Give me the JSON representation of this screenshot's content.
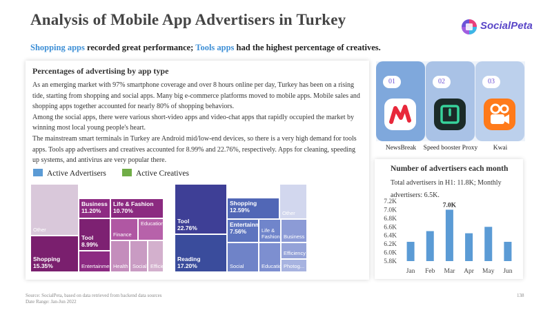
{
  "header": {
    "title": "Analysis of Mobile App Advertisers in Turkey",
    "logo_text": "SocialPeta"
  },
  "subtitle": {
    "part1": "Shopping apps",
    "part2": " recorded great performance; ",
    "part3": "Tools apps",
    "part4": " had the highest percentage of creatives."
  },
  "left_card": {
    "heading": "Percentages of advertising by app type",
    "paragraphs": [
      "As an emerging market with 97% smartphone coverage and over 8 hours online per day, Turkey has been on a rising tide, starting from shopping and social apps. Many big e-commerce platforms moved to mobile apps. Mobile sales and shopping apps together accounted for nearly 80% of shopping behaviors.",
      "Among the social apps, there were various short-video apps and video-chat apps that rapidly occupied the market by winning most local young people's heart.",
      "The mainstream smart terminals in Turkey are Android mid/low-end devices, so there is a very high demand for tools apps. Tools app advertisers and creatives accounted for 8.99% and 22.76%, respectively. Apps for cleaning, speeding up systems, and antivirus are very popular there."
    ],
    "legend": [
      {
        "label": "Active Advertisers",
        "color": "#5b9bd5"
      },
      {
        "label": "Active Creatives",
        "color": "#70ad47"
      }
    ]
  },
  "treemap_advertisers": [
    {
      "label": "Other",
      "value": "",
      "color": "#d9c8da"
    },
    {
      "label": "Shopping",
      "value": "15.35%",
      "color": "#7a1f6e"
    },
    {
      "label": "Business",
      "value": "11.20%",
      "color": "#8e2b83"
    },
    {
      "label": "Life & Fashion",
      "value": "10.70%",
      "color": "#8b2a80"
    },
    {
      "label": "Tool",
      "value": "8.99%",
      "color": "#7d2172"
    },
    {
      "label": "Finance",
      "value": "",
      "color": "#b057a3"
    },
    {
      "label": "Education",
      "value": "",
      "color": "#b762aa"
    },
    {
      "label": "Entertainment",
      "value": "",
      "color": "#8c2a82"
    },
    {
      "label": "Health",
      "value": "",
      "color": "#c48dbc"
    },
    {
      "label": "Social",
      "value": "",
      "color": "#c99bc3"
    },
    {
      "label": "Efficiency",
      "value": "",
      "color": "#d3b0cd"
    }
  ],
  "treemap_creatives": [
    {
      "label": "Tool",
      "value": "22.76%",
      "color": "#3e3f96"
    },
    {
      "label": "Reading",
      "value": "17.20%",
      "color": "#3a4c9c"
    },
    {
      "label": "Shopping",
      "value": "12.59%",
      "color": "#5167b6"
    },
    {
      "label": "Other",
      "value": "",
      "color": "#d2d7ee"
    },
    {
      "label": "Entertainment",
      "value": "7.56%",
      "color": "#5d74bf"
    },
    {
      "label": "Life & Fashion",
      "value": "",
      "color": "#7085cb"
    },
    {
      "label": "Business",
      "value": "",
      "color": "#8c9bd6"
    },
    {
      "label": "Social",
      "value": "",
      "color": "#6f83c8"
    },
    {
      "label": "Education",
      "value": "",
      "color": "#7d8fd0"
    },
    {
      "label": "Efficiency",
      "value": "",
      "color": "#94a2d8"
    },
    {
      "label": "Photog...",
      "value": "",
      "color": "#a7b3e0"
    }
  ],
  "top_apps": [
    {
      "rank": "01",
      "name": "NewsBreak",
      "icon": "newsbreak-icon",
      "tile_color": "#7fa8dc"
    },
    {
      "rank": "02",
      "name": "Speed booster Proxy",
      "icon": "speed-booster-icon",
      "tile_color": "#a9c2e6"
    },
    {
      "rank": "03",
      "name": "Kwai",
      "icon": "kwai-icon",
      "tile_color": "#bcd0ec"
    }
  ],
  "right_card": {
    "title": "Number of advertisers each month",
    "subtitle": "Total advertisers in H1: 11.8K; Monthly advertisers: 6.5K."
  },
  "chart_data": {
    "type": "bar",
    "title": "Number of advertisers each month",
    "categories": [
      "Jan",
      "Feb",
      "Mar",
      "Apr",
      "May",
      "Jun"
    ],
    "values": [
      6.25,
      6.5,
      7.0,
      6.45,
      6.6,
      6.25
    ],
    "ylim": [
      5.8,
      7.2
    ],
    "yticks": [
      "5.8K",
      "6.0K",
      "6.2K",
      "6.4K",
      "6.6K",
      "6.8K",
      "7.0K",
      "7.2K"
    ],
    "data_labels": [
      {
        "category": "Mar",
        "text": "7.0K"
      }
    ],
    "bar_color": "#5b9bd5"
  },
  "footer": {
    "source": "Source: SocialPeta, based on data retrieved from backend data sources",
    "date_range": "Date Range: Jan-Jun 2022",
    "page": "138"
  }
}
